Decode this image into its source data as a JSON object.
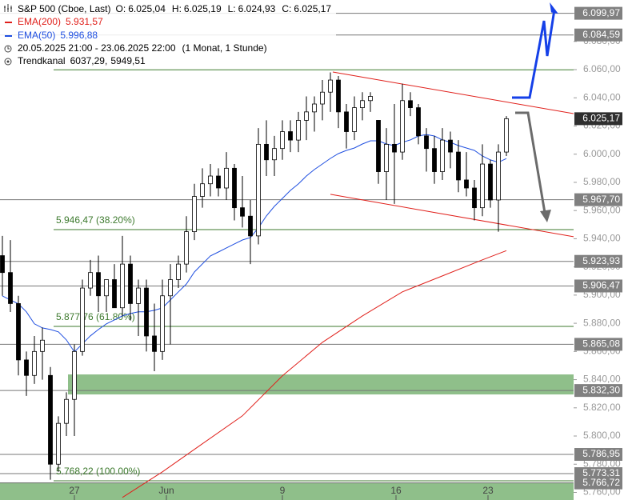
{
  "chart_data": {
    "type": "candlestick",
    "title": "S&P 500 (Cboe, Last)",
    "quote": [
      {
        "name": "O:",
        "value": 6025.04,
        "label": "6.025,04"
      },
      {
        "name": "H:",
        "value": 6025.19,
        "label": "6.025,19"
      },
      {
        "name": "L:",
        "value": 6024.93,
        "label": "6.024,93"
      },
      {
        "name": "C:",
        "value": 6025.17,
        "label": "6.025,17"
      }
    ],
    "period": "20.05.2025 21:00 - 23.06.2025 22:00",
    "interval": "(1 Monat, 1 Stunde)",
    "channel_name": "Trendkanal",
    "channel_values": [
      {
        "value": 6037.29,
        "label": "6037,29,"
      },
      {
        "value": 5949.51,
        "label": "5949,51"
      }
    ],
    "open": [
      5928,
      5916,
      5894,
      5854,
      5843,
      5860,
      5843,
      5780,
      5809,
      5826,
      5860,
      5905,
      5916,
      5899.5,
      5911,
      5891,
      5922,
      5894,
      5905,
      5871,
      5860,
      5899.5,
      5911,
      5922,
      5945,
      5970,
      5979,
      5984.5,
      5976,
      5990,
      5962,
      5956,
      5942,
      6007,
      5996,
      6004,
      6016,
      6010,
      6024,
      6030,
      6035.6,
      6044,
      6052.6,
      6030,
      6016,
      6033,
      6038,
      6024,
      5987.6,
      6007,
      6001.5,
      6038,
      6033,
      6013,
      6004,
      5987.6,
      6010,
      6001.5,
      5981.7,
      5976,
      5962,
      5993,
      5967.5,
      6001.5
    ],
    "high": [
      5942,
      5939,
      5899.5,
      5860,
      5871,
      5877,
      5849,
      5814,
      5831,
      5865,
      5911,
      5925,
      5928,
      5911,
      5922,
      5942,
      5928,
      5911,
      5911,
      5894,
      5911,
      5922,
      5928,
      5956,
      5979,
      5990,
      5993,
      5990,
      6001.5,
      5993,
      5984.5,
      5967.5,
      6018.5,
      6024,
      6013,
      6024,
      6024,
      6030,
      6041,
      6041,
      6052.6,
      6058,
      6055.5,
      6035.6,
      6041,
      6044,
      6044,
      6024,
      6018.5,
      6035.6,
      6050,
      6044,
      6035.6,
      6018.5,
      6013,
      6018.5,
      6016,
      6010,
      6001.5,
      5981.7,
      6007,
      5996,
      6007,
      6027
    ],
    "low": [
      5899.5,
      5888,
      5843,
      5828.5,
      5837,
      5840,
      5769,
      5774.6,
      5800,
      5800,
      5857,
      5899.5,
      5888,
      5888,
      5891,
      5885,
      5882,
      5871,
      5860,
      5846,
      5854,
      5865,
      5905,
      5916,
      5939,
      5962,
      5970,
      5970,
      5967.5,
      5953,
      5948,
      5922,
      5936,
      5984.5,
      5984.5,
      5996,
      6001.5,
      6001.5,
      6010,
      6016,
      6024,
      6030,
      6018.5,
      6004,
      6010,
      6024,
      6030,
      5979,
      5967.5,
      5964.7,
      5996,
      6027,
      6007,
      5987.6,
      5979,
      5981.7,
      5990,
      5973,
      5970,
      5953,
      5956,
      5962,
      5945,
      5998.7
    ],
    "close": [
      5916,
      5894,
      5854,
      5843,
      5860,
      5868,
      5780,
      5809,
      5826,
      5860,
      5905,
      5916,
      5899.5,
      5911,
      5891,
      5922,
      5894,
      5905,
      5871,
      5860,
      5899.5,
      5911,
      5922,
      5945,
      5970,
      5979,
      5984.5,
      5976,
      5990,
      5962,
      5956,
      5942,
      6007,
      5996,
      6004,
      6016,
      6010,
      6024,
      6030,
      6035.6,
      6044,
      6052.6,
      6030,
      6016,
      6033,
      6038,
      6041,
      5987.6,
      6007,
      6001.5,
      6038,
      6033,
      6013,
      6004,
      5987.6,
      6010,
      6001.5,
      5981.7,
      5976,
      5962,
      5993,
      5967.5,
      6001.5,
      6025.17
    ],
    "last_price": {
      "value": 6025.17,
      "label": "6.025,17"
    },
    "series": [
      {
        "name": "EMA(200)",
        "color": "#e0201b",
        "last": {
          "value": 5931.57,
          "label": "5.931,57"
        },
        "x": [
          15,
          20,
          25,
          30,
          35,
          40,
          45,
          50,
          55,
          60,
          63
        ],
        "values": [
          5756.4,
          5774.6,
          5794.5,
          5814.3,
          5842.7,
          5866.5,
          5885.2,
          5902.3,
          5913.6,
          5925.0,
          5931.57
        ]
      },
      {
        "name": "EMA(50)",
        "color": "#1f4fe0",
        "last": {
          "value": 5996.88,
          "label": "5.996,88"
        },
        "values": [
          5899.4,
          5896.6,
          5893.8,
          5888.1,
          5879.6,
          5876.7,
          5875.6,
          5873.9,
          5868.2,
          5859.7,
          5865.4,
          5871.1,
          5875.6,
          5879.6,
          5882.4,
          5885.2,
          5886.9,
          5888.1,
          5888.1,
          5889.2,
          5890.9,
          5896.6,
          5902.3,
          5907.9,
          5916.4,
          5922.1,
          5927.8,
          5930.6,
          5933.5,
          5936.3,
          5939.1,
          5940.8,
          5947.7,
          5956.2,
          5963.0,
          5968.6,
          5974.3,
          5978.9,
          5984.5,
          5989.1,
          5993.0,
          5997.0,
          6000.4,
          6002.7,
          6004.4,
          6007.2,
          6009.5,
          6009.5,
          6007.2,
          6006.1,
          6008.4,
          6010.1,
          6012.9,
          6014.0,
          6012.9,
          6010.1,
          6008.4,
          6006.1,
          6004.4,
          6002.7,
          5998.7,
          5995.9,
          5994.2,
          5996.88
        ]
      }
    ],
    "channel": [
      [
        [
          41.3,
          6058.3
        ],
        [
          71.4,
          6028.8
        ]
      ],
      [
        [
          41.0,
          5971.5
        ],
        [
          71.4,
          5941.4
        ]
      ]
    ],
    "levels": [
      {
        "value": 6099.97,
        "label": "6.099,97"
      },
      {
        "value": 6084.59,
        "label": "6.084,59"
      },
      {
        "value": 5967.7,
        "label": "5.967,70"
      },
      {
        "value": 5923.93,
        "label": "5.923,93"
      },
      {
        "value": 5906.47,
        "label": "5.906,47"
      },
      {
        "value": 5865.08,
        "label": "5.865,08"
      },
      {
        "value": 5832.3,
        "label": "5.832,30"
      },
      {
        "value": 5786.95,
        "label": "5.786,95"
      },
      {
        "value": 5773.31,
        "label": "5.773,31"
      },
      {
        "value": 5766.72,
        "label": "5.766,72"
      }
    ],
    "fib_levels": [
      {
        "value": 6059.9,
        "label": null
      },
      {
        "value": 5946.47,
        "label": "5.946,47 (38.20%)"
      },
      {
        "value": 5877.76,
        "label": "5.877,76 (61.80%)"
      },
      {
        "value": 5768.22,
        "label": "5.768,22 (100.00%)"
      }
    ],
    "zones": [
      [
        5829.5,
        5843.7
      ],
      [
        5750,
        5767.1
      ]
    ],
    "xlim": [
      -0.3,
      71.4
    ],
    "ylim": [
      5754.6,
      6109.4
    ],
    "xticks": [
      {
        "value": 9,
        "label": "27"
      },
      {
        "value": 20.5,
        "label": "Jun"
      },
      {
        "value": 35,
        "label": "9"
      },
      {
        "value": 49.2,
        "label": "16"
      },
      {
        "value": 60.7,
        "label": "23"
      }
    ],
    "yticks": [
      {
        "value": 5760,
        "label": "5.760,00"
      },
      {
        "value": 5780,
        "label": "5.780,00"
      },
      {
        "value": 5800,
        "label": "5.800,00"
      },
      {
        "value": 5820,
        "label": "5.820,00"
      },
      {
        "value": 5840,
        "label": "5.840,00"
      },
      {
        "value": 5860,
        "label": "5.860,00"
      },
      {
        "value": 5880,
        "label": "5.880,00"
      },
      {
        "value": 5900,
        "label": "5.900,00"
      },
      {
        "value": 5920,
        "label": "5.920,00"
      },
      {
        "value": 5940,
        "label": "5.940,00"
      },
      {
        "value": 5960,
        "label": "5.960,00"
      },
      {
        "value": 5980,
        "label": "5.980,00"
      },
      {
        "value": 6000,
        "label": "6.000,00"
      },
      {
        "value": 6020,
        "label": "6.020,00"
      },
      {
        "value": 6040,
        "label": "6.040,00"
      },
      {
        "value": 6060,
        "label": "6.060,00"
      },
      {
        "value": 6080,
        "label": "6.080,00"
      },
      {
        "value": 6100,
        "label": "6.100,00"
      }
    ]
  }
}
